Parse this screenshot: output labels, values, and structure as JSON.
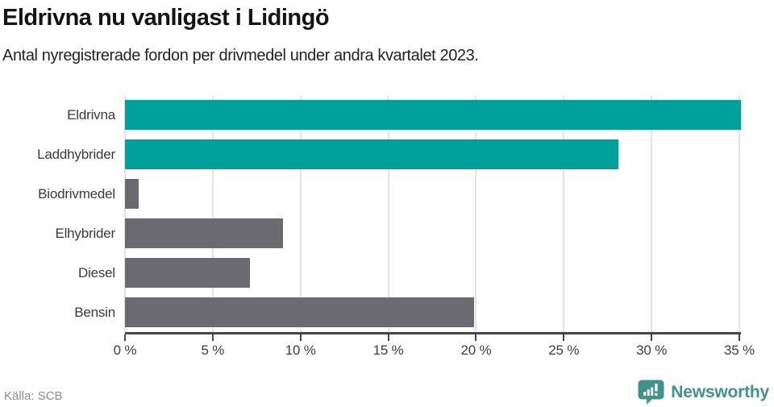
{
  "header": {
    "title": "Eldrivna nu vanligast i Lidingö",
    "subtitle": "Antal nyregistrerade fordon per drivmedel under andra kvartalet 2023."
  },
  "chart_data": {
    "type": "bar",
    "orientation": "horizontal",
    "title": "Eldrivna nu vanligast i Lidingö",
    "subtitle": "Antal nyregistrerade fordon per drivmedel under andra kvartalet 2023.",
    "xlabel": "",
    "ylabel": "",
    "categories": [
      "Eldrivna",
      "Laddhybrider",
      "Biodrivmedel",
      "Elhybrider",
      "Diesel",
      "Bensin"
    ],
    "values": [
      35.1,
      28.1,
      0.8,
      9.0,
      7.1,
      19.9
    ],
    "unit": "%",
    "bar_colors": [
      "#00a19a",
      "#00a19a",
      "#6a6a70",
      "#6a6a70",
      "#6a6a70",
      "#6a6a70"
    ],
    "x_tick_values": [
      0,
      5,
      10,
      15,
      20,
      25,
      30,
      35
    ],
    "x_tick_labels": [
      "0 %",
      "5 %",
      "10 %",
      "15 %",
      "20 %",
      "25 %",
      "30 %",
      "35 %"
    ],
    "xlim": [
      0,
      35
    ],
    "grid": true,
    "legend": "none"
  },
  "footer": {
    "source": "Källa: SCB",
    "brand": "Newsworthy",
    "brand_icon": "newsworthy-bubble-chart-icon"
  },
  "colors": {
    "accent_teal": "#00a19a",
    "neutral_gray": "#6a6a70",
    "brand_teal": "#3e948d",
    "gridline": "#e4e4e4",
    "axis": "#474747",
    "text_dark": "#141414",
    "text_muted": "#8e8e8e"
  }
}
